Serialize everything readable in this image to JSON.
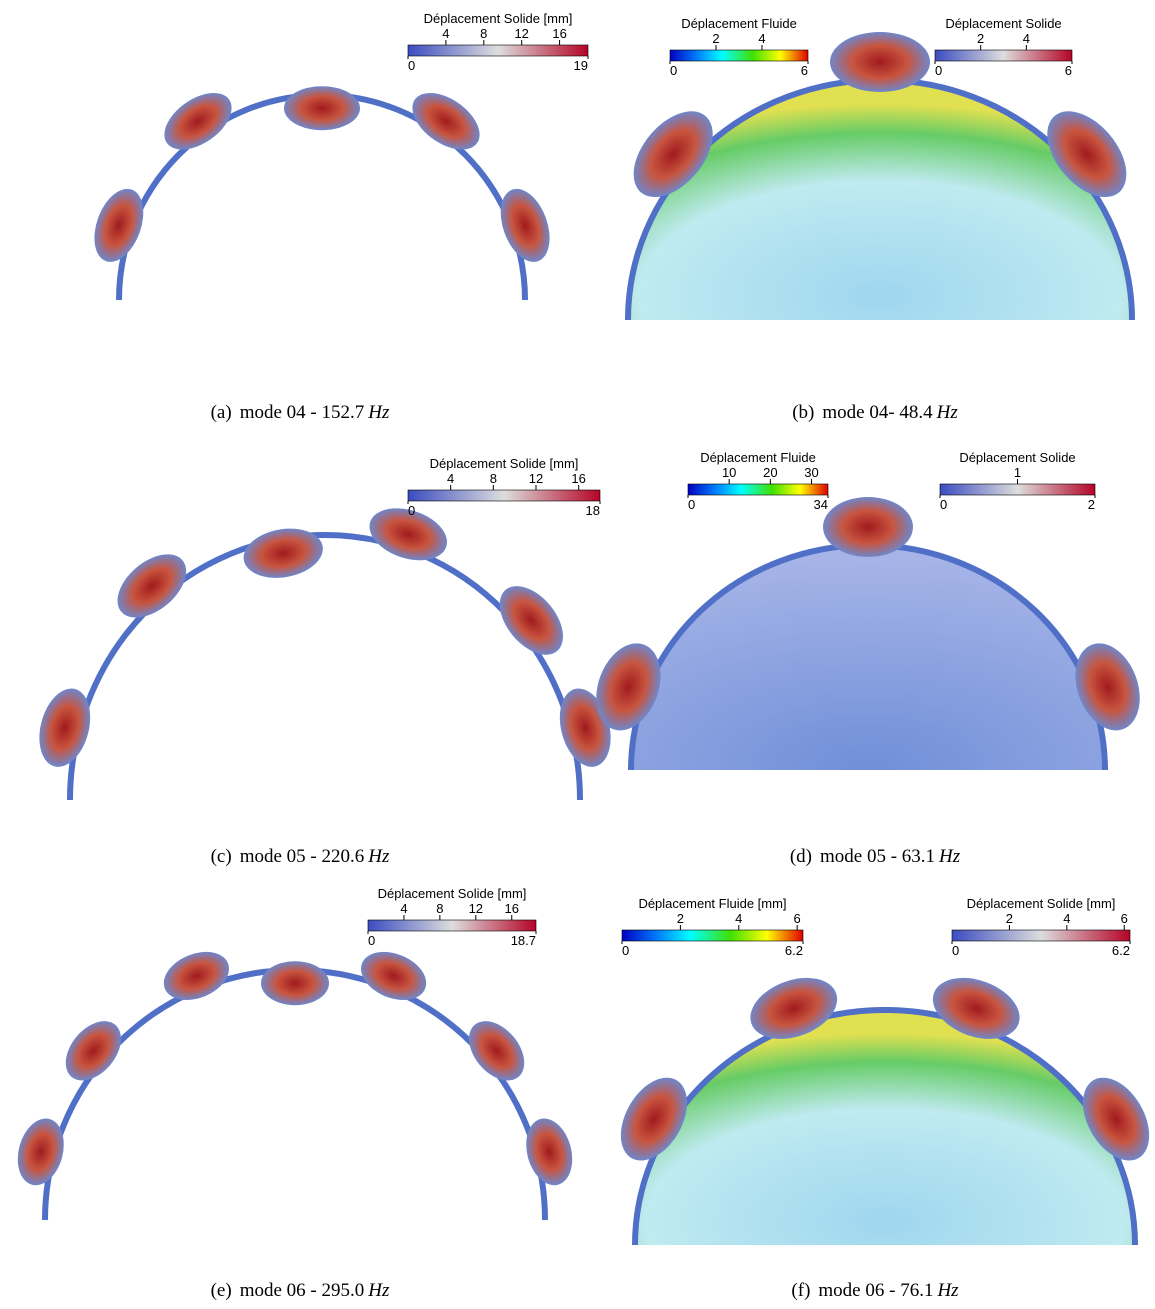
{
  "panels": [
    {
      "caption": {
        "label": "(a)",
        "text": "mode 04 - 152.7",
        "unit": "Hz"
      },
      "colorbars": [
        {
          "title": "Déplacement Solide [mm]",
          "colormap": "coolwarm",
          "min": 0,
          "max": 19,
          "ticks": [
            4,
            8,
            12,
            16
          ]
        }
      ]
    },
    {
      "caption": {
        "label": "(b)",
        "text": "mode 04- 48.4",
        "unit": "Hz"
      },
      "colorbars": [
        {
          "title": "Déplacement Fluide",
          "colormap": "jet",
          "min": 0,
          "max": 6,
          "ticks": [
            2,
            4
          ]
        },
        {
          "title": "Déplacement Solide",
          "colormap": "coolwarm",
          "min": 0,
          "max": 6,
          "ticks": [
            2,
            4
          ]
        }
      ]
    },
    {
      "caption": {
        "label": "(c)",
        "text": "mode 05 - 220.6",
        "unit": "Hz"
      },
      "colorbars": [
        {
          "title": "Déplacement Solide [mm]",
          "colormap": "coolwarm",
          "min": 0,
          "max": 18,
          "ticks": [
            4,
            8,
            12,
            16
          ]
        }
      ]
    },
    {
      "caption": {
        "label": "(d)",
        "text": "mode 05 - 63.1",
        "unit": "Hz"
      },
      "colorbars": [
        {
          "title": "Déplacement Fluide",
          "colormap": "jet",
          "min": 0,
          "max": 34,
          "ticks": [
            10,
            20,
            30
          ]
        },
        {
          "title": "Déplacement Solide",
          "colormap": "coolwarm",
          "min": 0,
          "max": 2,
          "ticks": [
            1
          ]
        }
      ]
    },
    {
      "caption": {
        "label": "(e)",
        "text": "mode 06 - 295.0",
        "unit": "Hz"
      },
      "colorbars": [
        {
          "title": "Déplacement Solide [mm]",
          "colormap": "coolwarm",
          "min": 0,
          "max": 18.7,
          "ticks": [
            4,
            8,
            12,
            16
          ]
        }
      ]
    },
    {
      "caption": {
        "label": "(f)",
        "text": "mode 06 - 76.1",
        "unit": "Hz"
      },
      "colorbars": [
        {
          "title": "Déplacement Fluide [mm]",
          "colormap": "jet",
          "min": 0,
          "max": 6.2,
          "ticks": [
            2,
            4,
            6
          ]
        },
        {
          "title": "Déplacement Solide [mm]",
          "colormap": "coolwarm",
          "min": 0,
          "max": 6.2,
          "ticks": [
            2,
            4,
            6
          ]
        }
      ]
    }
  ]
}
